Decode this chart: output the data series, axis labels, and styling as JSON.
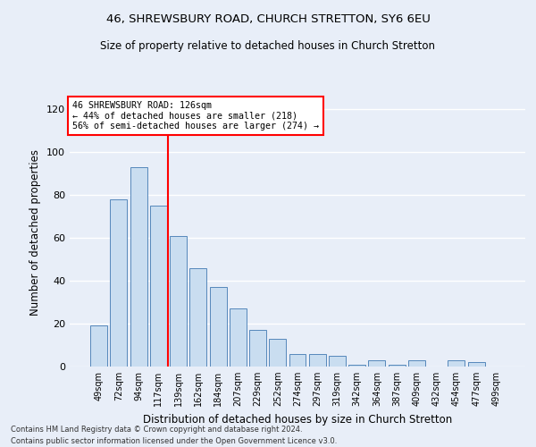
{
  "title1": "46, SHREWSBURY ROAD, CHURCH STRETTON, SY6 6EU",
  "title2": "Size of property relative to detached houses in Church Stretton",
  "xlabel": "Distribution of detached houses by size in Church Stretton",
  "ylabel": "Number of detached properties",
  "categories": [
    "49sqm",
    "72sqm",
    "94sqm",
    "117sqm",
    "139sqm",
    "162sqm",
    "184sqm",
    "207sqm",
    "229sqm",
    "252sqm",
    "274sqm",
    "297sqm",
    "319sqm",
    "342sqm",
    "364sqm",
    "387sqm",
    "409sqm",
    "432sqm",
    "454sqm",
    "477sqm",
    "499sqm"
  ],
  "values": [
    19,
    78,
    93,
    75,
    61,
    46,
    37,
    27,
    17,
    13,
    6,
    6,
    5,
    1,
    3,
    1,
    3,
    0,
    3,
    2,
    0
  ],
  "bar_color": "#c9ddf0",
  "bar_edgecolor": "#5588bb",
  "redline_x": 3.5,
  "annotation_line1": "46 SHREWSBURY ROAD: 126sqm",
  "annotation_line2": "← 44% of detached houses are smaller (218)",
  "annotation_line3": "56% of semi-detached houses are larger (274) →",
  "ylim": [
    0,
    125
  ],
  "yticks": [
    0,
    20,
    40,
    60,
    80,
    100,
    120
  ],
  "footer1": "Contains HM Land Registry data © Crown copyright and database right 2024.",
  "footer2": "Contains public sector information licensed under the Open Government Licence v3.0.",
  "bg_color": "#e8eef8",
  "plot_bg_color": "#e8eef8"
}
